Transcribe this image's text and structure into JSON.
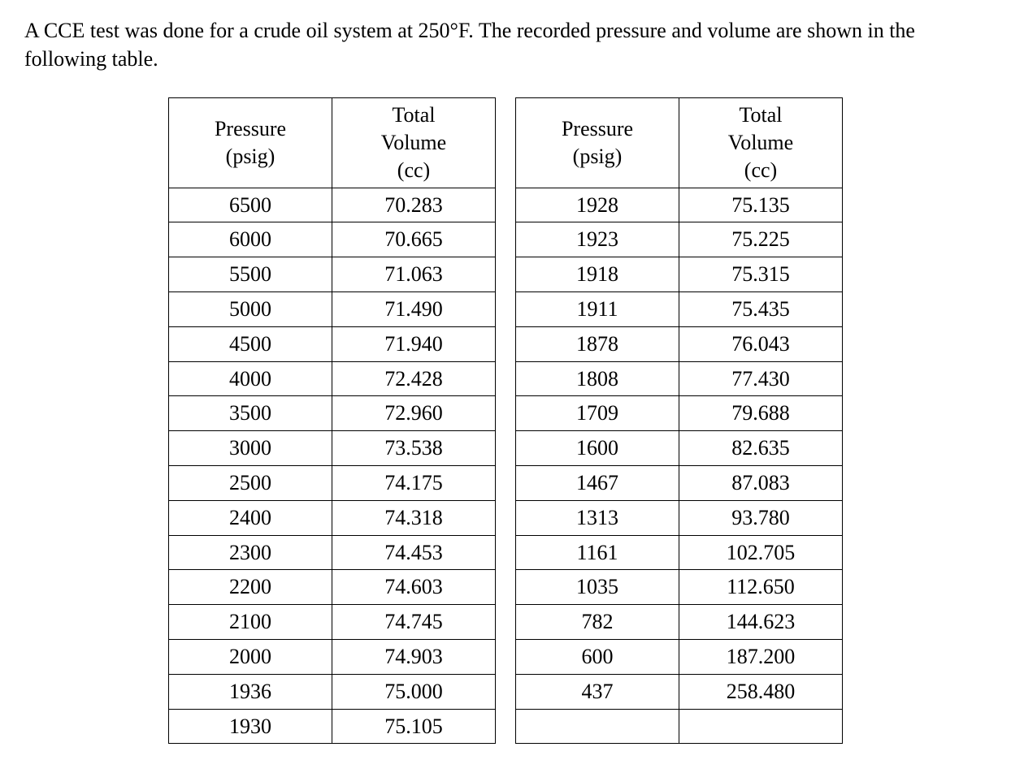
{
  "description": "A CCE test was done for a crude oil system at 250°F. The recorded pressure and volume are shown in the following table.",
  "table": {
    "headers": {
      "pressure": "Pressure\n(psig)",
      "volume": "Total\nVolume\n(cc)"
    },
    "left": {
      "rows": [
        {
          "pressure": "6500",
          "volume": "70.283"
        },
        {
          "pressure": "6000",
          "volume": "70.665"
        },
        {
          "pressure": "5500",
          "volume": "71.063"
        },
        {
          "pressure": "5000",
          "volume": "71.490"
        },
        {
          "pressure": "4500",
          "volume": "71.940"
        },
        {
          "pressure": "4000",
          "volume": "72.428"
        },
        {
          "pressure": "3500",
          "volume": "72.960"
        },
        {
          "pressure": "3000",
          "volume": "73.538"
        },
        {
          "pressure": "2500",
          "volume": "74.175"
        },
        {
          "pressure": "2400",
          "volume": "74.318"
        },
        {
          "pressure": "2300",
          "volume": "74.453"
        },
        {
          "pressure": "2200",
          "volume": "74.603"
        },
        {
          "pressure": "2100",
          "volume": "74.745"
        },
        {
          "pressure": "2000",
          "volume": "74.903"
        },
        {
          "pressure": "1936",
          "volume": "75.000"
        },
        {
          "pressure": "1930",
          "volume": "75.105"
        }
      ]
    },
    "right": {
      "rows": [
        {
          "pressure": "1928",
          "volume": "75.135"
        },
        {
          "pressure": "1923",
          "volume": "75.225"
        },
        {
          "pressure": "1918",
          "volume": "75.315"
        },
        {
          "pressure": "1911",
          "volume": "75.435"
        },
        {
          "pressure": "1878",
          "volume": "76.043"
        },
        {
          "pressure": "1808",
          "volume": "77.430"
        },
        {
          "pressure": "1709",
          "volume": "79.688"
        },
        {
          "pressure": "1600",
          "volume": "82.635"
        },
        {
          "pressure": "1467",
          "volume": "87.083"
        },
        {
          "pressure": "1313",
          "volume": "93.780"
        },
        {
          "pressure": "1161",
          "volume": "102.705"
        },
        {
          "pressure": "1035",
          "volume": "112.650"
        },
        {
          "pressure": "782",
          "volume": "144.623"
        },
        {
          "pressure": "600",
          "volume": "187.200"
        },
        {
          "pressure": "437",
          "volume": "258.480"
        },
        {
          "pressure": "",
          "volume": ""
        }
      ]
    },
    "styling": {
      "border_color": "#000000",
      "border_width": 1.5,
      "background_color": "#ffffff",
      "text_color": "#000000",
      "font_family": "Times New Roman",
      "font_size": 26,
      "cell_padding": "4px 30px",
      "text_align": "center",
      "gap_between_tables": 24
    }
  }
}
